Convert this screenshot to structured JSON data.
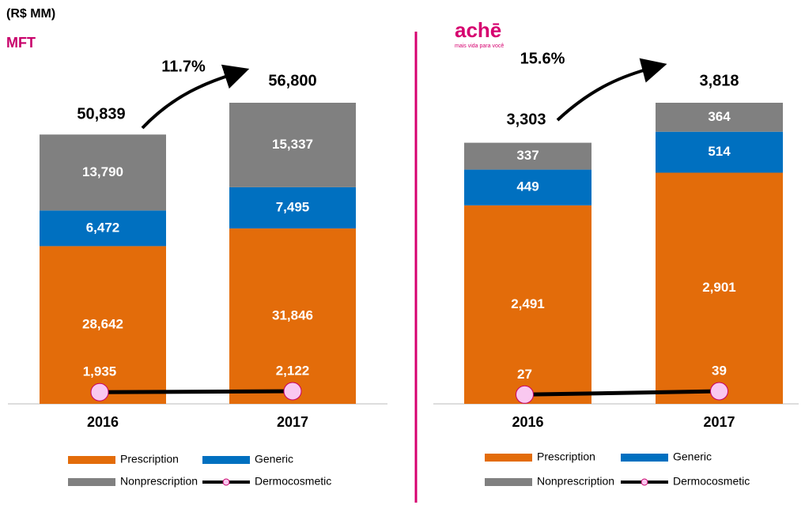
{
  "unit_label": "(R$ MM)",
  "chart_data": [
    {
      "type": "bar",
      "stacked": true,
      "title": "MFT",
      "categories": [
        "2016",
        "2017"
      ],
      "series": [
        {
          "name": "Prescription",
          "color": "#e36c0a",
          "values": [
            28642,
            31846
          ],
          "value_labels": [
            "28,642",
            "31,846"
          ]
        },
        {
          "name": "Generic",
          "color": "#0070c0",
          "values": [
            6472,
            7495
          ],
          "value_labels": [
            "6,472",
            "7,495"
          ]
        },
        {
          "name": "Nonprescription",
          "color": "#808080",
          "values": [
            13790,
            15337
          ],
          "value_labels": [
            "13,790",
            "15,337"
          ]
        },
        {
          "name": "Dermocosmetic",
          "type": "line",
          "color": "#000000",
          "marker_color": "#f9c8f0",
          "values": [
            1935,
            2122
          ],
          "value_labels": [
            "1,935",
            "2,122"
          ]
        }
      ],
      "totals": {
        "values": [
          50839,
          56800
        ],
        "value_labels": [
          "50,839",
          "56,800"
        ]
      },
      "growth_label": "11.7%"
    },
    {
      "type": "bar",
      "stacked": true,
      "logo": "achē",
      "logo_tagline": "mais vida para você",
      "categories": [
        "2016",
        "2017"
      ],
      "series": [
        {
          "name": "Prescription",
          "color": "#e36c0a",
          "values": [
            2491,
            2901
          ],
          "value_labels": [
            "2,491",
            "2,901"
          ]
        },
        {
          "name": "Generic",
          "color": "#0070c0",
          "values": [
            449,
            514
          ],
          "value_labels": [
            "449",
            "514"
          ]
        },
        {
          "name": "Nonprescription",
          "color": "#808080",
          "values": [
            337,
            364
          ],
          "value_labels": [
            "337",
            "364"
          ]
        },
        {
          "name": "Dermocosmetic",
          "type": "line",
          "color": "#000000",
          "marker_color": "#f9c8f0",
          "values": [
            27,
            39
          ],
          "value_labels": [
            "27",
            "39"
          ]
        }
      ],
      "totals": {
        "values": [
          3303,
          3818
        ],
        "value_labels": [
          "3,303",
          "3,818"
        ]
      },
      "growth_label": "15.6%"
    }
  ]
}
